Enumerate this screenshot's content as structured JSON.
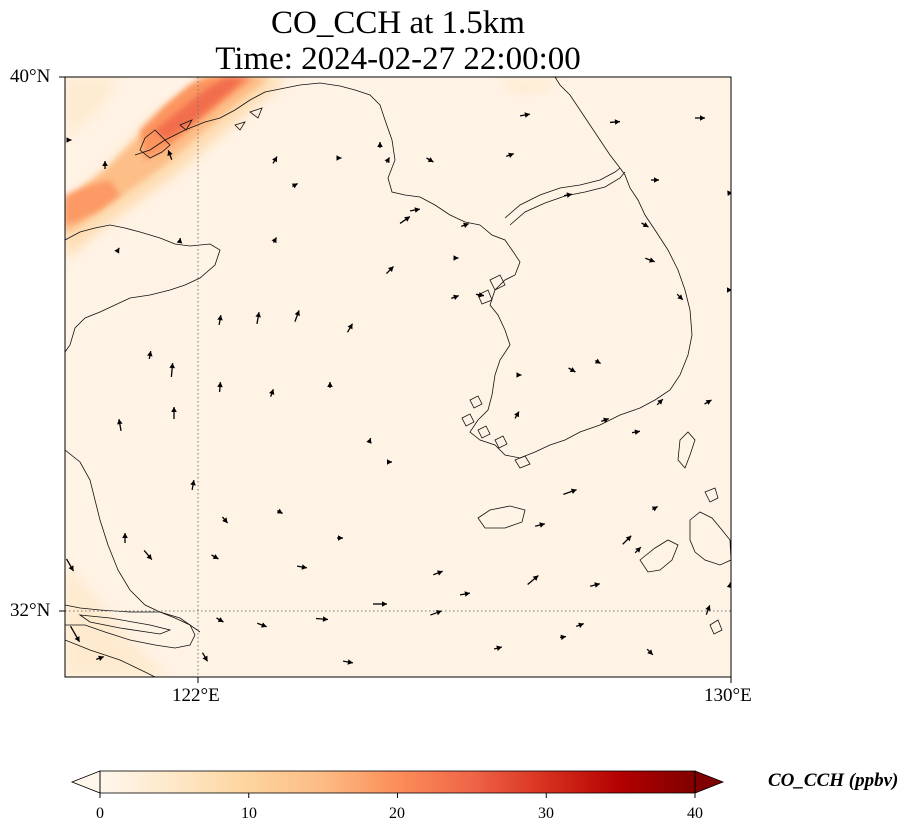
{
  "figure": {
    "title_line1": "CO_CCH at 1.5km",
    "title_line2": "Time: 2024-02-27 22:00:00"
  },
  "map": {
    "extent": {
      "lon_min": 120,
      "lon_max": 130,
      "lat_min": 31,
      "lat_max": 40
    },
    "lat_labels": [
      "40°N",
      "32°N"
    ],
    "lon_labels": [
      "122°E",
      "130°E"
    ],
    "gridlines": {
      "lon": [
        122
      ],
      "lat": [
        32
      ],
      "style": "dotted"
    },
    "background_color": "#fff5eb",
    "plume": {
      "description_region": "northwest corner over Liaodong Peninsula / Bohai",
      "peak_ppbv": 22
    }
  },
  "colorbar": {
    "label": "CO_CCH (ppbv)",
    "min": 0,
    "max": 40,
    "ticks": [
      "0",
      "10",
      "20",
      "30",
      "40"
    ],
    "extend": "both",
    "colormap": "OrRd",
    "colors": [
      "#fff7ec",
      "#fee8c8",
      "#fdd49e",
      "#fdbb84",
      "#fc8d59",
      "#ef6548",
      "#d7301f",
      "#b30000",
      "#7f0000"
    ]
  }
}
